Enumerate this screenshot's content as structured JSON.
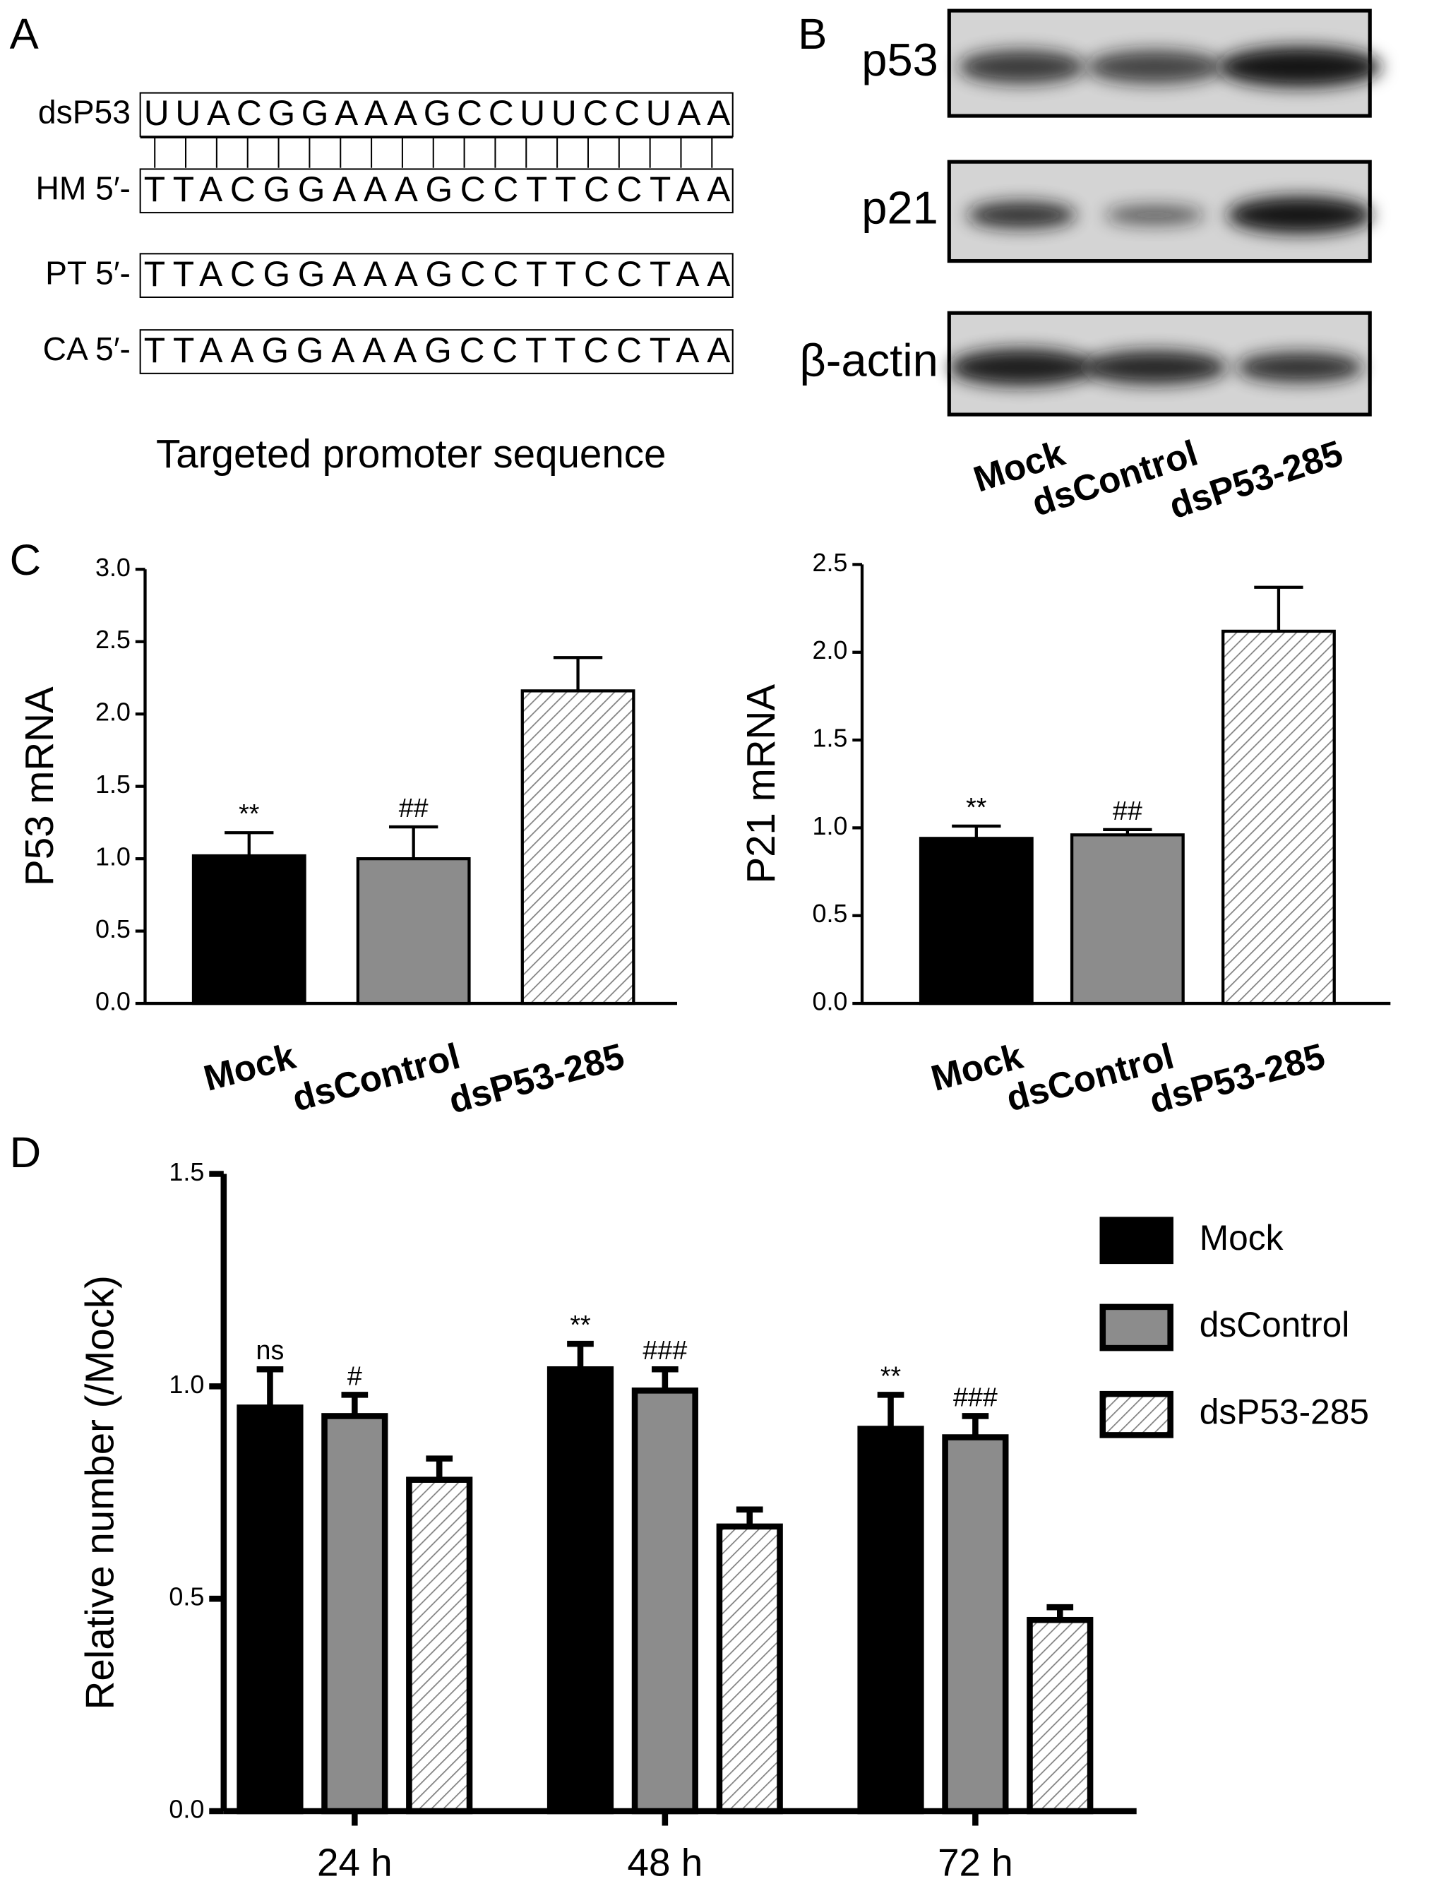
{
  "panel_a": {
    "label": "A",
    "rows": [
      {
        "name": "dsP53",
        "sequence": "UUACGGAAAGCCUUCCUAA"
      },
      {
        "name": "HM 5′-",
        "sequence": "TTACGGAAAGCCTTCCTAA"
      },
      {
        "name": "PT 5′-",
        "sequence": "TTACGGAAAGCCTTCCTAA"
      },
      {
        "name": "CA 5′-",
        "sequence": "TTAAGGAAAGCCTTCCTAA"
      }
    ],
    "caption": "Targeted promoter sequence"
  },
  "panel_b": {
    "label": "B",
    "bands": [
      "p53",
      "p21",
      "β-actin"
    ],
    "lanes": [
      "Mock",
      "dsControl",
      "dsP53-285"
    ]
  },
  "panel_c": {
    "label": "C"
  },
  "panel_d": {
    "label": "D"
  },
  "chart_data": [
    {
      "type": "bar",
      "y_label": "P53 mRNA",
      "categories": [
        "Mock",
        "dsControl",
        "dsP53-285"
      ],
      "values": [
        1.02,
        1.0,
        2.16
      ],
      "errors": [
        0.16,
        0.22,
        0.23
      ],
      "annotations": [
        "**",
        "##",
        null
      ],
      "colors": [
        "#000000",
        "#8c8c8c",
        "#808080"
      ],
      "hatched": [
        false,
        false,
        true
      ],
      "ylim": [
        0,
        3
      ],
      "yticks": [
        {
          "value": 0,
          "label": "0.0"
        },
        {
          "value": 0.5,
          "label": "0.5"
        },
        {
          "value": 1,
          "label": "1.0"
        },
        {
          "value": 1.5,
          "label": "1.5"
        },
        {
          "value": 2,
          "label": "2.0"
        },
        {
          "value": 2.5,
          "label": "2.5"
        },
        {
          "value": 3,
          "label": "3.0"
        }
      ]
    },
    {
      "type": "bar",
      "y_label": "P21 mRNA",
      "categories": [
        "Mock",
        "dsControl",
        "dsP53-285"
      ],
      "values": [
        0.94,
        0.96,
        2.12
      ],
      "errors": [
        0.07,
        0.03,
        0.25
      ],
      "annotations": [
        "**",
        "##",
        null
      ],
      "colors": [
        "#000000",
        "#8c8c8c",
        "#808080"
      ],
      "hatched": [
        false,
        false,
        true
      ],
      "ylim": [
        0,
        2.5
      ],
      "yticks": [
        {
          "value": 0,
          "label": "0.0"
        },
        {
          "value": 0.5,
          "label": "0.5"
        },
        {
          "value": 1,
          "label": "1.0"
        },
        {
          "value": 1.5,
          "label": "1.5"
        },
        {
          "value": 2,
          "label": "2.0"
        },
        {
          "value": 2.5,
          "label": "2.5"
        }
      ]
    },
    {
      "type": "grouped-bar",
      "y_label": "Relative number (/Mock)",
      "categories": [
        "24 h",
        "48 h",
        "72 h"
      ],
      "series": [
        {
          "name": "Mock",
          "color": "#000000",
          "hatched": false,
          "values": [
            0.95,
            1.04,
            0.9
          ],
          "errors": [
            0.09,
            0.06,
            0.08
          ],
          "annotations": [
            "ns",
            "**",
            "**"
          ]
        },
        {
          "name": "dsControl",
          "color": "#8c8c8c",
          "hatched": false,
          "values": [
            0.93,
            0.99,
            0.88
          ],
          "errors": [
            0.05,
            0.05,
            0.05
          ],
          "annotations": [
            "#",
            "###",
            "###"
          ]
        },
        {
          "name": "dsP53-285",
          "color": "#808080",
          "hatched": true,
          "values": [
            0.78,
            0.67,
            0.45
          ],
          "errors": [
            0.05,
            0.04,
            0.03
          ]
        }
      ],
      "ylim": [
        0,
        1.5
      ],
      "yticks": [
        {
          "value": 0,
          "label": "0.0"
        },
        {
          "value": 0.5,
          "label": "0.5"
        },
        {
          "value": 1,
          "label": "1.0"
        },
        {
          "value": 1.5,
          "label": "1.5"
        }
      ],
      "legend": "right"
    }
  ]
}
